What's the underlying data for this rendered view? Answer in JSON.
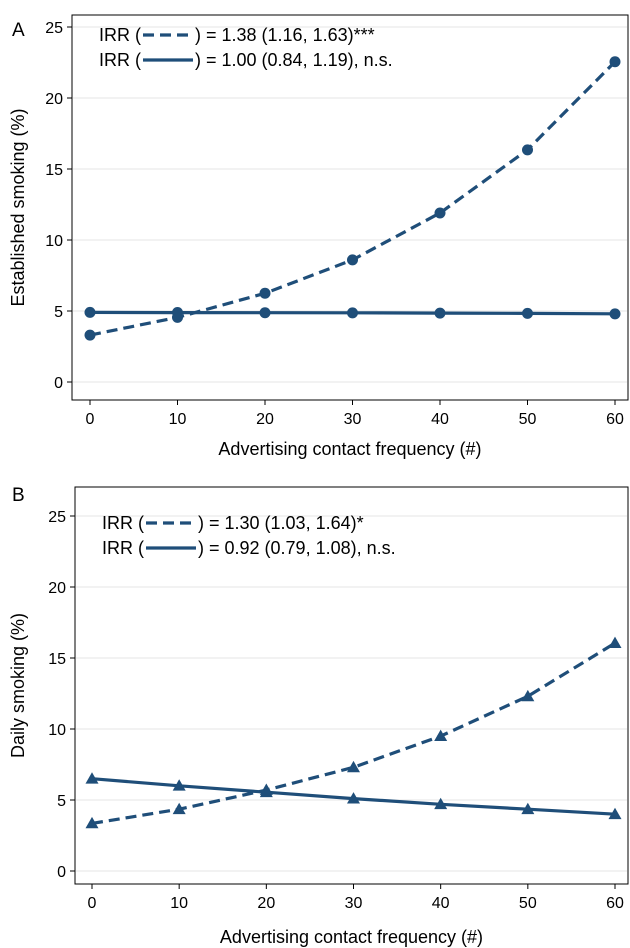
{
  "line_color": "#1f4e79",
  "grid_color": "#e6e6e6",
  "chart_data": [
    {
      "panel": "A",
      "type": "line",
      "title": "",
      "xlabel": "Advertising contact frequency (#)",
      "ylabel": "Established smoking (%)",
      "xlim": [
        0,
        60
      ],
      "ylim": [
        0,
        25
      ],
      "x_ticks": [
        0,
        10,
        20,
        30,
        40,
        50,
        60
      ],
      "y_ticks": [
        0,
        5,
        10,
        15,
        20,
        25
      ],
      "grid": true,
      "marker": "circle",
      "legend_position": "top-left",
      "x": [
        0,
        10,
        20,
        30,
        40,
        50,
        60
      ],
      "series": [
        {
          "style": "dashed",
          "legend": "= 1.38 (1.16, 1.63)***",
          "values": [
            3.3,
            4.55,
            6.25,
            8.6,
            11.9,
            16.35,
            22.55
          ]
        },
        {
          "style": "solid",
          "legend": "= 1.00 (0.84, 1.19), n.s.",
          "values": [
            4.9,
            4.89,
            4.88,
            4.87,
            4.85,
            4.83,
            4.8
          ]
        }
      ]
    },
    {
      "panel": "B",
      "type": "line",
      "title": "",
      "xlabel": "Advertising contact frequency (#)",
      "ylabel": "Daily smoking (%)",
      "xlim": [
        0,
        60
      ],
      "ylim": [
        0,
        25
      ],
      "x_ticks": [
        0,
        10,
        20,
        30,
        40,
        50,
        60
      ],
      "y_ticks": [
        0,
        5,
        10,
        15,
        20,
        25
      ],
      "grid": true,
      "marker": "triangle",
      "legend_position": "top-left",
      "x": [
        0,
        10,
        20,
        30,
        40,
        50,
        60
      ],
      "series": [
        {
          "style": "dashed",
          "legend": "= 1.30 (1.03, 1.64)*",
          "values": [
            3.35,
            4.35,
            5.7,
            7.3,
            9.5,
            12.3,
            16.05
          ]
        },
        {
          "style": "solid",
          "legend": "= 0.92 (0.79, 1.08), n.s.",
          "values": [
            6.5,
            6.0,
            5.55,
            5.1,
            4.7,
            4.35,
            4.0
          ]
        }
      ]
    }
  ],
  "legend_prefix": "IRR (",
  "legend_suffix": ")"
}
